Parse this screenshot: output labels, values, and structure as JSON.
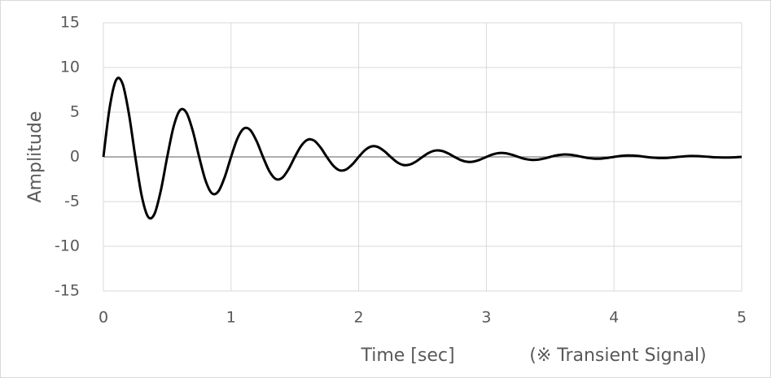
{
  "chart_data": {
    "type": "line",
    "x_label": "Time [sec]",
    "y_label": "Amplitude",
    "annotation": "(※ Transient Signal)",
    "x": [
      0,
      0.05,
      0.1,
      0.15,
      0.2,
      0.25,
      0.3,
      0.35,
      0.4,
      0.45,
      0.5,
      0.55,
      0.6,
      0.65,
      0.7,
      0.75,
      0.8,
      0.85,
      0.9,
      0.95,
      1,
      1.05,
      1.1,
      1.15,
      1.2,
      1.25,
      1.3,
      1.35,
      1.4,
      1.45,
      1.5,
      1.55,
      1.6,
      1.65,
      1.7,
      1.75,
      1.8,
      1.85,
      1.9,
      1.95,
      2,
      2.05,
      2.1,
      2.15,
      2.2,
      2.25,
      2.3,
      2.35,
      2.4,
      2.45,
      2.5,
      2.55,
      2.6,
      2.65,
      2.7,
      2.75,
      2.8,
      2.85,
      2.9,
      2.95,
      3,
      3.05,
      3.1,
      3.15,
      3.2,
      3.25,
      3.3,
      3.35,
      3.4,
      3.45,
      3.5,
      3.55,
      3.6,
      3.65,
      3.7,
      3.75,
      3.8,
      3.85,
      3.9,
      3.95,
      4,
      4.05,
      4.1,
      4.15,
      4.2,
      4.25,
      4.3,
      4.35,
      4.4,
      4.45,
      4.5,
      4.55,
      4.6,
      4.65,
      4.7,
      4.75,
      4.8,
      4.85,
      4.9,
      4.95,
      5
    ],
    "series": [
      {
        "color": "#000000",
        "values": [
          0,
          5.59,
          8.61,
          8.19,
          4.81,
          0,
          -4.35,
          -6.7,
          -6.38,
          -3.75,
          0,
          3.39,
          5.22,
          4.96,
          2.92,
          0,
          -2.64,
          -4.07,
          -3.87,
          -2.27,
          0,
          2.06,
          3.17,
          3.01,
          1.77,
          0,
          -1.6,
          -2.47,
          -2.35,
          -1.38,
          0,
          1.25,
          1.92,
          1.83,
          1.07,
          0,
          -0.97,
          -1.5,
          -1.42,
          -0.84,
          0,
          0.76,
          1.17,
          1.11,
          0.65,
          0,
          -0.59,
          -0.91,
          -0.86,
          -0.51,
          0,
          0.46,
          0.71,
          0.67,
          0.4,
          0,
          -0.36,
          -0.55,
          -0.52,
          -0.31,
          0,
          0.28,
          0.43,
          0.41,
          0.24,
          0,
          -0.22,
          -0.33,
          -0.32,
          -0.19,
          0,
          0.17,
          0.26,
          0.25,
          0.15,
          0,
          -0.13,
          -0.2,
          -0.19,
          -0.11,
          0,
          0.1,
          0.16,
          0.15,
          0.09,
          0,
          -0.08,
          -0.12,
          -0.12,
          -0.07,
          0,
          0.06,
          0.1,
          0.09,
          0.05,
          0,
          -0.05,
          -0.07,
          -0.07,
          -0.04,
          0
        ]
      }
    ],
    "xlim": [
      0,
      5
    ],
    "xticks": [
      0,
      1,
      2,
      3,
      4,
      5
    ],
    "ylim": [
      -15,
      15
    ],
    "yticks": [
      -15,
      -10,
      -5,
      0,
      5,
      10,
      15
    ],
    "grid": true
  }
}
